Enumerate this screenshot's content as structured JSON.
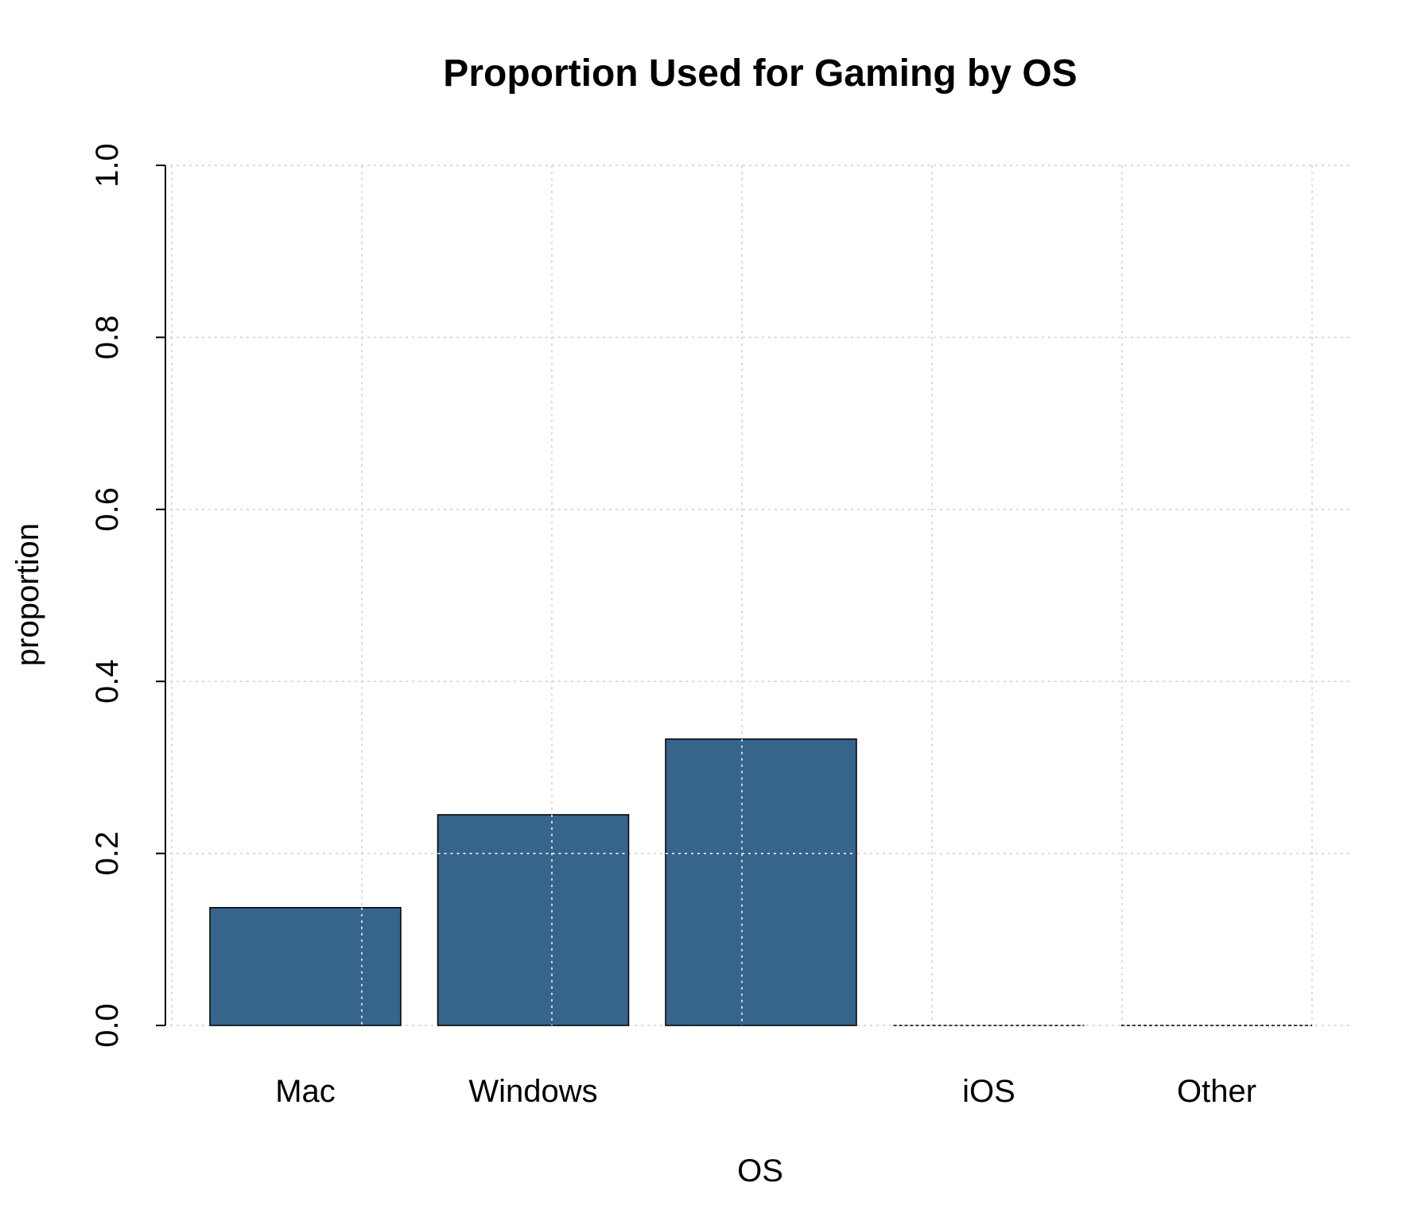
{
  "chart_data": {
    "type": "bar",
    "title": "Proportion Used for Gaming by OS",
    "xlabel": "OS",
    "ylabel": "proportion",
    "categories": [
      "Mac",
      "Windows",
      "",
      "iOS",
      "Other"
    ],
    "values": [
      0.137,
      0.245,
      0.333,
      0.0,
      0.0
    ],
    "ylim": [
      0,
      1
    ],
    "yticks": [
      "0.0",
      "0.2",
      "0.4",
      "0.6",
      "0.8",
      "1.0"
    ],
    "bar_color": "#37648b",
    "grid": true,
    "legend": "none"
  }
}
